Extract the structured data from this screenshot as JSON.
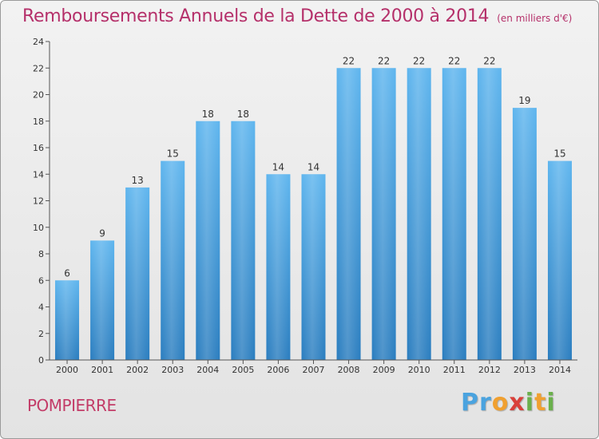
{
  "title": {
    "main": "Remboursements Annuels de la Dette de 2000 à 2014",
    "unit": "(en milliers d'€)"
  },
  "commune": "POMPIERRE",
  "logo": {
    "letters": [
      "P",
      "r",
      "o",
      "x",
      "i",
      "t",
      "i"
    ],
    "colors": [
      "#4aa3df",
      "#4aa3df",
      "#f0a030",
      "#d9403a",
      "#6ab04c",
      "#f0a030",
      "#6ab04c"
    ]
  },
  "colors": {
    "bar_light": "#5eb5ee",
    "bar_dark": "#2a7dbf",
    "axis": "#555555",
    "grid": "#d0d0d0"
  },
  "chart_data": {
    "type": "bar",
    "title": "Remboursements Annuels de la Dette de 2000 à 2014",
    "xlabel": "",
    "ylabel": "",
    "categories": [
      "2000",
      "2001",
      "2002",
      "2003",
      "2004",
      "2005",
      "2006",
      "2007",
      "2008",
      "2009",
      "2010",
      "2011",
      "2012",
      "2013",
      "2014"
    ],
    "values": [
      6,
      9,
      13,
      15,
      18,
      18,
      14,
      14,
      22,
      22,
      22,
      22,
      22,
      19,
      15
    ],
    "ylim": [
      0,
      24
    ],
    "yticks": [
      0,
      2,
      4,
      6,
      8,
      10,
      12,
      14,
      16,
      18,
      20,
      22,
      24
    ]
  }
}
